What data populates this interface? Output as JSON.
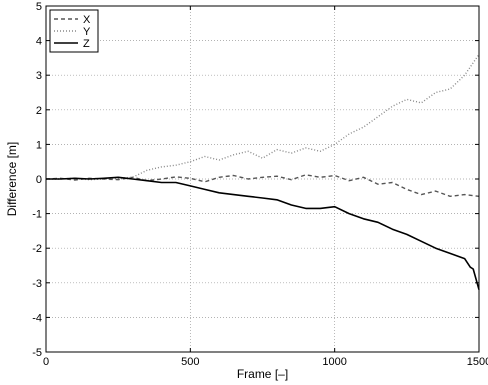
{
  "chart_data": {
    "type": "line",
    "xlabel": "Frame [–]",
    "ylabel": "Difference [m]",
    "xlim": [
      0,
      1500
    ],
    "ylim": [
      -5,
      5
    ],
    "xticks": [
      0,
      500,
      1000,
      1500
    ],
    "yticks": [
      -5,
      -4,
      -3,
      -2,
      -1,
      0,
      1,
      2,
      3,
      4,
      5
    ],
    "grid": true,
    "legend_position": "top-left",
    "series": [
      {
        "name": "X",
        "style": "dashed",
        "color": "#555555",
        "x": [
          0,
          50,
          100,
          150,
          200,
          250,
          300,
          350,
          400,
          450,
          500,
          550,
          600,
          650,
          700,
          750,
          800,
          850,
          900,
          950,
          1000,
          1050,
          1100,
          1150,
          1200,
          1250,
          1300,
          1350,
          1400,
          1450,
          1500
        ],
        "y": [
          0.0,
          0.02,
          -0.03,
          0.02,
          0.0,
          -0.02,
          0.05,
          -0.05,
          0.0,
          0.06,
          0.02,
          -0.08,
          0.05,
          0.1,
          0.0,
          0.05,
          0.08,
          -0.02,
          0.12,
          0.05,
          0.1,
          -0.05,
          0.05,
          -0.15,
          -0.1,
          -0.3,
          -0.45,
          -0.35,
          -0.5,
          -0.45,
          -0.5
        ]
      },
      {
        "name": "Y",
        "style": "dotted",
        "color": "#888888",
        "x": [
          0,
          50,
          100,
          150,
          200,
          250,
          300,
          350,
          400,
          450,
          500,
          550,
          600,
          650,
          700,
          750,
          800,
          850,
          900,
          950,
          1000,
          1050,
          1100,
          1150,
          1200,
          1250,
          1300,
          1350,
          1400,
          1450,
          1500
        ],
        "y": [
          0.0,
          0.0,
          0.02,
          -0.02,
          0.0,
          0.02,
          0.05,
          0.25,
          0.35,
          0.4,
          0.5,
          0.65,
          0.55,
          0.7,
          0.8,
          0.6,
          0.85,
          0.75,
          0.9,
          0.8,
          1.0,
          1.3,
          1.5,
          1.8,
          2.1,
          2.3,
          2.2,
          2.5,
          2.6,
          3.0,
          3.6
        ]
      },
      {
        "name": "Z",
        "style": "solid",
        "color": "#000000",
        "x": [
          0,
          50,
          100,
          150,
          200,
          250,
          300,
          350,
          400,
          450,
          500,
          550,
          600,
          650,
          700,
          750,
          800,
          850,
          900,
          950,
          1000,
          1050,
          1100,
          1150,
          1200,
          1250,
          1300,
          1350,
          1400,
          1450,
          1470,
          1480,
          1490,
          1500
        ],
        "y": [
          0.0,
          0.0,
          0.02,
          0.0,
          0.02,
          0.05,
          0.0,
          -0.05,
          -0.1,
          -0.1,
          -0.2,
          -0.3,
          -0.4,
          -0.45,
          -0.5,
          -0.55,
          -0.6,
          -0.75,
          -0.85,
          -0.85,
          -0.8,
          -1.0,
          -1.15,
          -1.25,
          -1.45,
          -1.6,
          -1.8,
          -2.0,
          -2.15,
          -2.3,
          -2.55,
          -2.6,
          -2.9,
          -3.2
        ]
      }
    ]
  }
}
